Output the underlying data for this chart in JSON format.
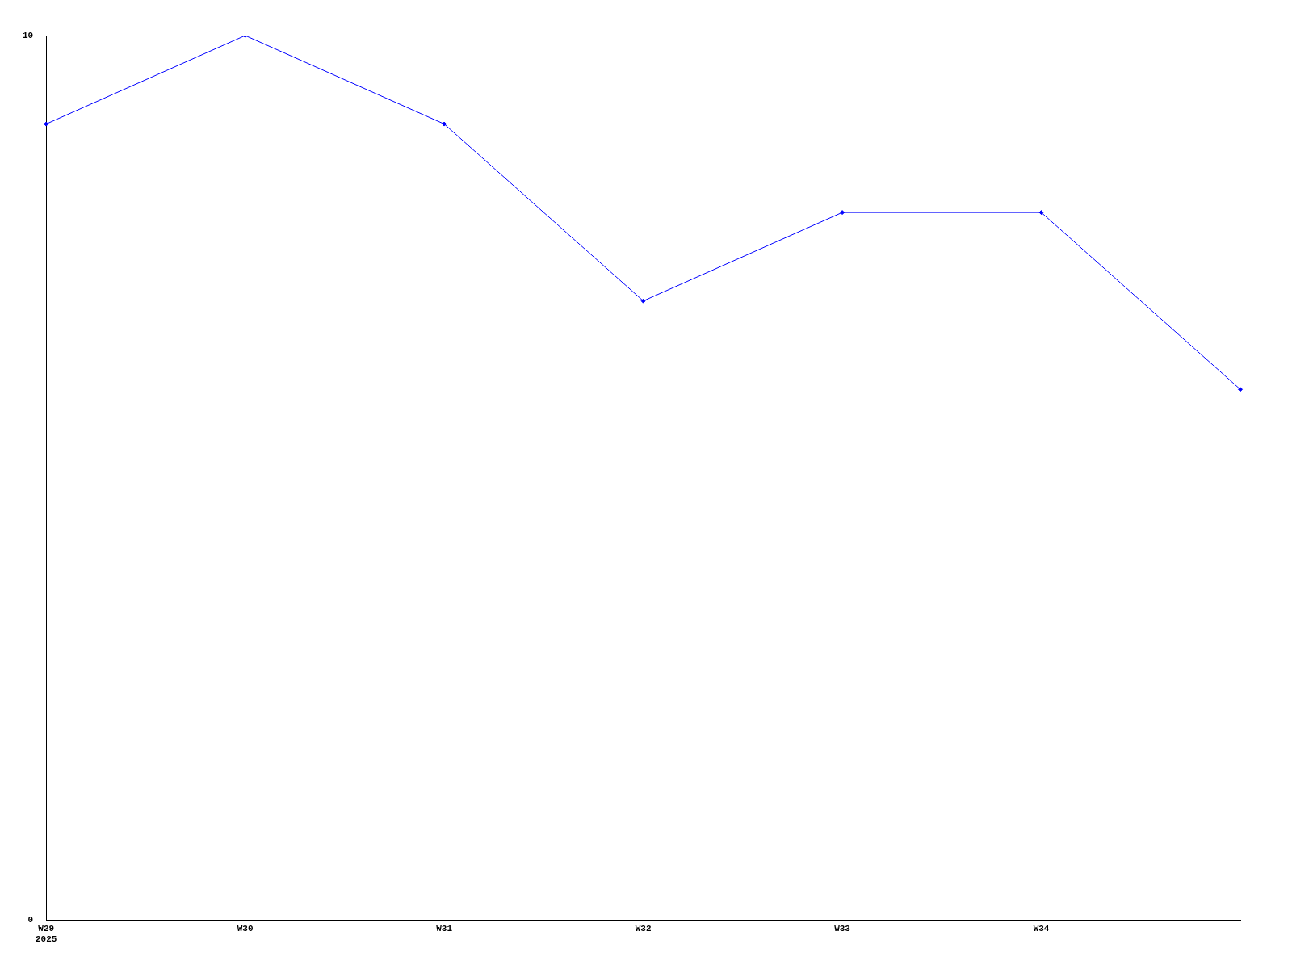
{
  "chart_data": {
    "type": "line",
    "categories": [
      "W29\n2025",
      "W30",
      "W31",
      "W32",
      "W33",
      "W34",
      null
    ],
    "series": [
      {
        "color": "#0000ff",
        "values": [
          9,
          10,
          9,
          7,
          8,
          8,
          6
        ]
      }
    ],
    "ylim": [
      0,
      10
    ],
    "yticks": [
      0,
      10
    ],
    "legend": false,
    "marker": "diamond",
    "line_style": "solid"
  }
}
